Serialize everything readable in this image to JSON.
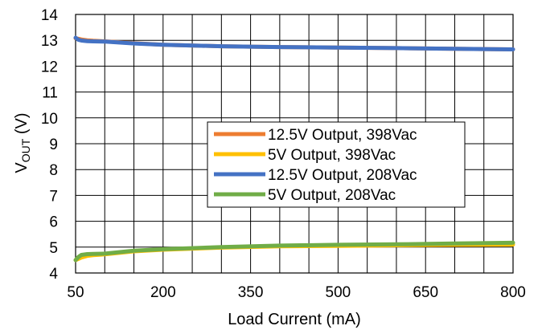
{
  "chart_data": {
    "type": "line",
    "xlabel": "Load Current (mA)",
    "ylabel": {
      "main": "V",
      "sub": "OUT",
      "unit": " (V)"
    },
    "xlim": [
      50,
      800
    ],
    "ylim": [
      4,
      14
    ],
    "x_ticks": [
      50,
      200,
      350,
      500,
      650,
      800
    ],
    "y_ticks": [
      4,
      5,
      6,
      7,
      8,
      9,
      10,
      11,
      12,
      13,
      14
    ],
    "x_grid_step": 50,
    "y_grid_step": 1,
    "grid": true,
    "legend_placement": "center",
    "series": [
      {
        "name": "12.5V Output, 398Vac",
        "color": "#ED7D31",
        "x": [
          50,
          60,
          70,
          80,
          100,
          150,
          200,
          300,
          400,
          500,
          600,
          700,
          800
        ],
        "y": [
          13.08,
          13.03,
          13.0,
          12.98,
          12.96,
          12.89,
          12.83,
          12.77,
          12.74,
          12.72,
          12.7,
          12.67,
          12.65
        ]
      },
      {
        "name": "5V Output, 398Vac",
        "color": "#FFC000",
        "x": [
          50,
          60,
          70,
          80,
          100,
          150,
          200,
          300,
          400,
          500,
          600,
          700,
          800
        ],
        "y": [
          4.5,
          4.6,
          4.66,
          4.69,
          4.72,
          4.84,
          4.9,
          4.98,
          5.03,
          5.05,
          5.07,
          5.09,
          5.1
        ]
      },
      {
        "name": "12.5V Output, 208Vac",
        "color": "#4472C4",
        "x": [
          50,
          55,
          60,
          70,
          80,
          100,
          150,
          200,
          300,
          400,
          500,
          600,
          700,
          800
        ],
        "y": [
          13.1,
          13.02,
          12.99,
          12.97,
          12.96,
          12.95,
          12.88,
          12.83,
          12.77,
          12.74,
          12.72,
          12.7,
          12.67,
          12.65
        ]
      },
      {
        "name": "5V Output, 208Vac",
        "color": "#70AD47",
        "x": [
          50,
          55,
          60,
          70,
          80,
          100,
          150,
          200,
          300,
          400,
          500,
          600,
          700,
          800
        ],
        "y": [
          4.5,
          4.62,
          4.7,
          4.73,
          4.74,
          4.75,
          4.86,
          4.92,
          5.0,
          5.06,
          5.09,
          5.11,
          5.14,
          5.17
        ]
      }
    ]
  }
}
